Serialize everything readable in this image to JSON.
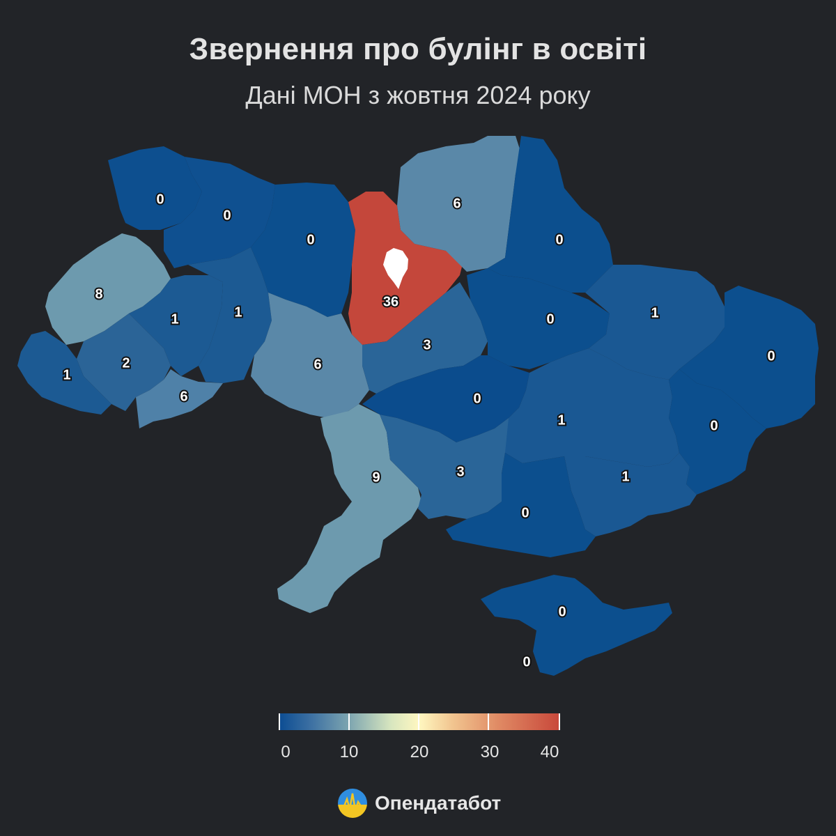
{
  "header": {
    "title": "Звернення про булінг в освіті",
    "subtitle": "Дані МОН з жовтня 2024 року"
  },
  "colors": {
    "background": "#222428",
    "scale_low": "#0b4c93",
    "scale_mid": "#fff7c0",
    "scale_high": "#c8473a"
  },
  "regions": [
    {
      "name": "Volyn",
      "value": "0"
    },
    {
      "name": "Rivne",
      "value": "0"
    },
    {
      "name": "Zhytomyr",
      "value": "0"
    },
    {
      "name": "Kyiv oblast",
      "value": "36"
    },
    {
      "name": "Chernihiv",
      "value": "6"
    },
    {
      "name": "Sumy",
      "value": "0"
    },
    {
      "name": "Lviv",
      "value": "8"
    },
    {
      "name": "Ternopil",
      "value": "1"
    },
    {
      "name": "Khmelnytskyi",
      "value": "1"
    },
    {
      "name": "Ivano-Frankivsk",
      "value": "2"
    },
    {
      "name": "Zakarpattia",
      "value": "1"
    },
    {
      "name": "Chernivtsi",
      "value": "6"
    },
    {
      "name": "Vinnytsia",
      "value": "6"
    },
    {
      "name": "Cherkasy",
      "value": "3"
    },
    {
      "name": "Poltava",
      "value": "0"
    },
    {
      "name": "Kharkiv",
      "value": "1"
    },
    {
      "name": "Luhansk",
      "value": "0"
    },
    {
      "name": "Kirovohrad",
      "value": "0"
    },
    {
      "name": "Dnipropetrovsk",
      "value": "1"
    },
    {
      "name": "Donetsk",
      "value": "0"
    },
    {
      "name": "Zaporizhzhia",
      "value": "1"
    },
    {
      "name": "Odesa",
      "value": "9"
    },
    {
      "name": "Mykolaiv",
      "value": "3"
    },
    {
      "name": "Kherson",
      "value": "0"
    },
    {
      "name": "Crimea",
      "value": "0"
    },
    {
      "name": "Sevastopol",
      "value": "0"
    }
  ],
  "legend": {
    "ticks": [
      "0",
      "10",
      "20",
      "30",
      "40"
    ],
    "range": [
      0,
      40
    ]
  },
  "brand": {
    "name": "Опендатабот",
    "logo": "opendatabot-logo-icon"
  }
}
